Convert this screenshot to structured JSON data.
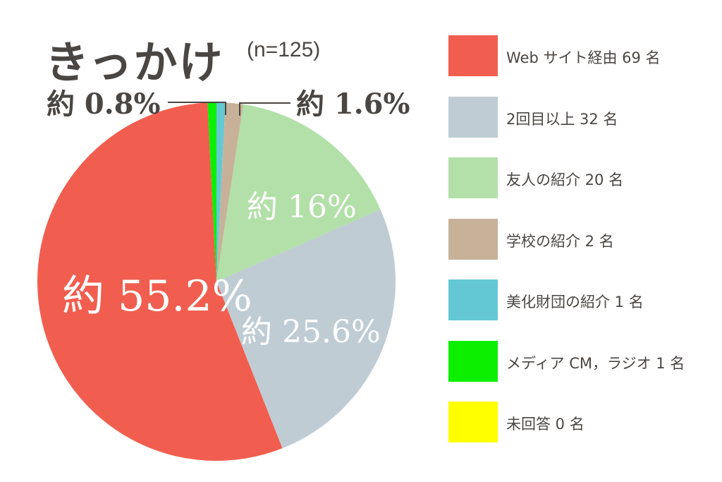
{
  "chart_data": {
    "type": "pie",
    "title": "きっかけ",
    "subtitle": "(n=125)",
    "start_angle_deg": 0,
    "direction": "clockwise",
    "slices": [
      {
        "label": "美化財団の紹介",
        "value": 1,
        "legend": "美化財団の紹介 1 名",
        "color": "#64c8d4",
        "pct_label": ""
      },
      {
        "label": "学校の紹介",
        "value": 2,
        "legend": "学校の紹介 2 名",
        "color": "#c7b299",
        "pct_label": "約 1.6%"
      },
      {
        "label": "友人の紹介",
        "value": 20,
        "legend": "友人の紹介 20 名",
        "color": "#b2e0a8",
        "pct_label": "約 16%"
      },
      {
        "label": "2回目以上",
        "value": 32,
        "legend": "2回目以上 32 名",
        "color": "#bfccd4",
        "pct_label": "約 25.6%"
      },
      {
        "label": "Webサイト経由",
        "value": 69,
        "legend": "Web サイト経由 69 名",
        "color": "#f15e4f",
        "pct_label": "約 55.2%"
      },
      {
        "label": "メディアCM，ラジオ",
        "value": 1,
        "legend": "メディア CM，ラジオ 1 名",
        "color": "#0cf000",
        "pct_label": ""
      },
      {
        "label": "未回答",
        "value": 0,
        "legend": "未回答 0 名",
        "color": "#ffff00",
        "pct_label": ""
      }
    ],
    "legend_order": [
      "Webサイト経由",
      "2回目以上",
      "友人の紹介",
      "学校の紹介",
      "美化財団の紹介",
      "メディアCM，ラジオ",
      "未回答"
    ],
    "callouts": {
      "left": "約 0.8%",
      "right": "約 1.6%"
    }
  }
}
